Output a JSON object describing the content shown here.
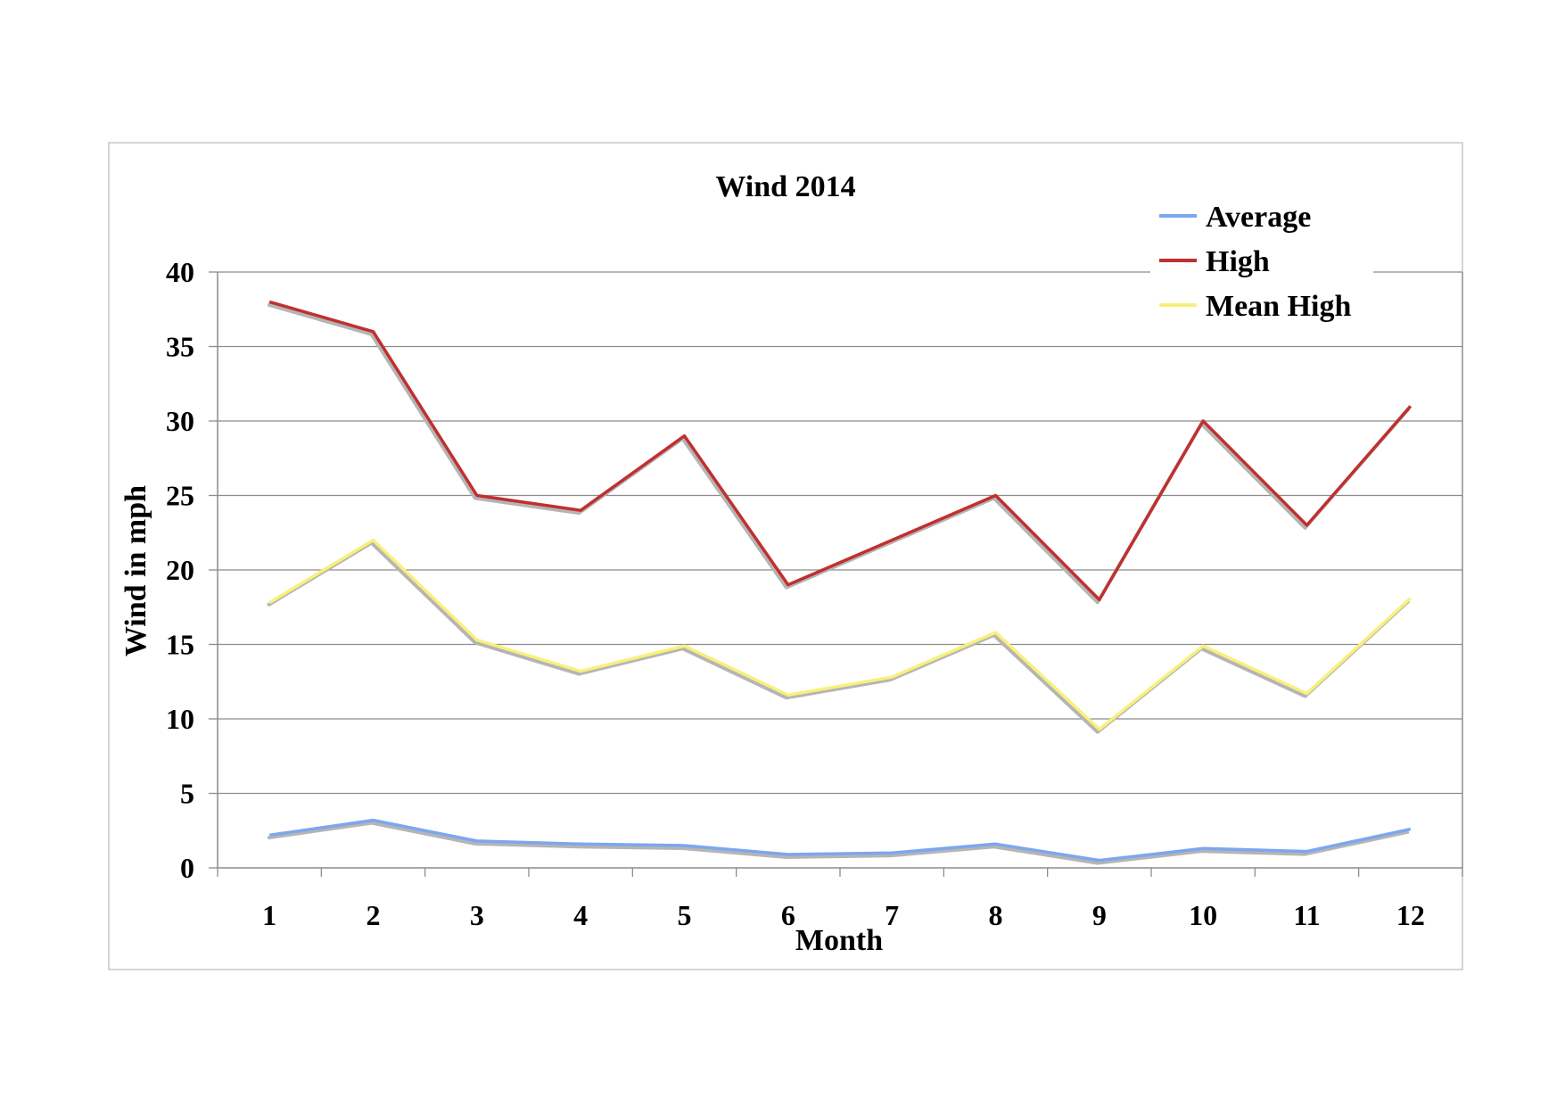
{
  "chart_data": {
    "type": "line",
    "title": "Wind 2014",
    "xlabel": "Month",
    "ylabel": "Wind in mph",
    "categories": [
      "1",
      "2",
      "3",
      "4",
      "5",
      "6",
      "7",
      "8",
      "9",
      "10",
      "11",
      "12"
    ],
    "ylim": [
      0,
      40
    ],
    "yticks": [
      "0",
      "5",
      "10",
      "15",
      "20",
      "25",
      "30",
      "35",
      "40"
    ],
    "grid": true,
    "legend_position": "top-right",
    "series": [
      {
        "name": "Average",
        "color": "#7ba7f0",
        "values": [
          2.2,
          3.2,
          1.8,
          1.6,
          1.5,
          0.9,
          1.0,
          1.6,
          0.5,
          1.3,
          1.1,
          2.6
        ]
      },
      {
        "name": "High",
        "color": "#c0302f",
        "values": [
          38,
          36,
          25,
          24,
          29,
          19,
          22,
          25,
          18,
          30,
          23,
          31
        ]
      },
      {
        "name": "Mean High",
        "color": "#f8f07a",
        "values": [
          17.8,
          22.0,
          15.3,
          13.2,
          14.9,
          11.6,
          12.8,
          15.8,
          9.3,
          14.9,
          11.7,
          18.1
        ]
      }
    ]
  }
}
